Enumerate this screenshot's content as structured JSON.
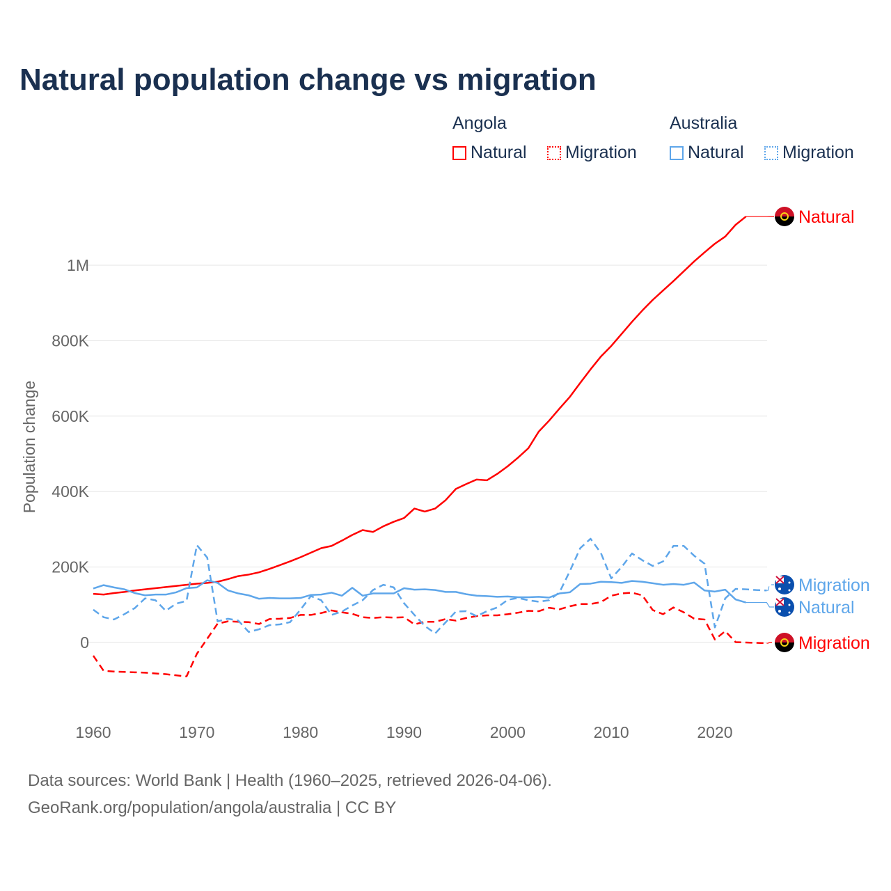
{
  "title": "Natural population change vs migration",
  "legend": {
    "groups": [
      {
        "country": "Angola",
        "items": [
          "Natural",
          "Migration"
        ]
      },
      {
        "country": "Australia",
        "items": [
          "Natural",
          "Migration"
        ]
      }
    ]
  },
  "colors": {
    "angola": "#ff0000",
    "australia": "#5ea6ea"
  },
  "footer": {
    "line1": "Data sources: World Bank | Health (1960–2025, retrieved 2026-04-06).",
    "line2": "GeoRank.org/population/angola/australia | CC BY"
  },
  "chart_data": {
    "type": "line",
    "title": "Natural population change vs migration",
    "xlabel": "",
    "ylabel": "Population change",
    "xlim": [
      1960,
      2025
    ],
    "ylim": [
      -150000,
      1150000
    ],
    "x_ticks": [
      "1960",
      "1970",
      "1980",
      "1990",
      "2000",
      "2010",
      "2020"
    ],
    "y_ticks": [
      {
        "v": 0,
        "label": "0"
      },
      {
        "v": 200000,
        "label": "200K"
      },
      {
        "v": 400000,
        "label": "400K"
      },
      {
        "v": 600000,
        "label": "600K"
      },
      {
        "v": 800000,
        "label": "800K"
      },
      {
        "v": 1000000,
        "label": "1M"
      }
    ],
    "grid": true,
    "series": [
      {
        "name": "Angola Natural",
        "country": "angola",
        "style": "solid",
        "end_label": "Natural",
        "start": 1960,
        "values": [
          129000,
          127000,
          131000,
          134000,
          138000,
          141000,
          144000,
          147000,
          150000,
          153000,
          156000,
          158000,
          161000,
          168000,
          176000,
          180000,
          186000,
          195000,
          205000,
          215000,
          226000,
          238000,
          250000,
          256000,
          270000,
          285000,
          298000,
          293000,
          308000,
          320000,
          330000,
          355000,
          347000,
          355000,
          377000,
          407000,
          420000,
          432000,
          430000,
          447000,
          467000,
          490000,
          515000,
          559000,
          588000,
          620000,
          651000,
          688000,
          724000,
          758000,
          786000,
          818000,
          850000,
          880000,
          908000,
          933000,
          958000,
          984000,
          1010000,
          1034000,
          1057000,
          1076000,
          1107000,
          1129000
        ]
      },
      {
        "name": "Angola Migration",
        "country": "angola",
        "style": "dashed",
        "end_label": "Migration",
        "start": 1960,
        "values": [
          -35000,
          -75000,
          -77000,
          -78000,
          -79000,
          -80000,
          -82000,
          -84000,
          -87000,
          -90000,
          -30000,
          10000,
          50000,
          56000,
          55000,
          54000,
          49000,
          62000,
          63000,
          65000,
          73000,
          73000,
          78000,
          85000,
          80000,
          76000,
          67000,
          65000,
          67000,
          66000,
          67000,
          48000,
          55000,
          55000,
          62000,
          58000,
          65000,
          70000,
          72000,
          72000,
          75000,
          79000,
          84000,
          83000,
          92000,
          88000,
          96000,
          102000,
          102000,
          107000,
          124000,
          130000,
          132000,
          125000,
          86000,
          75000,
          93000,
          80000,
          63000,
          61000,
          8000,
          30000,
          1000,
          0,
          -1000,
          -2000
        ]
      },
      {
        "name": "Australia Natural",
        "country": "australia",
        "style": "solid",
        "end_label": "Natural",
        "start": 1960,
        "values": [
          143000,
          152000,
          146000,
          141000,
          131000,
          125000,
          127000,
          127000,
          133000,
          144000,
          146000,
          165000,
          158000,
          138000,
          130000,
          125000,
          116000,
          118000,
          117000,
          117000,
          118000,
          126000,
          127000,
          132000,
          124000,
          145000,
          124000,
          130000,
          130000,
          130000,
          144000,
          140000,
          141000,
          139000,
          134000,
          134000,
          128000,
          124000,
          123000,
          121000,
          122000,
          120000,
          120000,
          121000,
          119000,
          130000,
          133000,
          155000,
          156000,
          161000,
          160000,
          158000,
          163000,
          161000,
          157000,
          153000,
          155000,
          153000,
          159000,
          138000,
          135000,
          140000,
          114000,
          106000
        ]
      },
      {
        "name": "Australia Migration",
        "country": "australia",
        "style": "dashed",
        "end_label": "Migration",
        "start": 1960,
        "values": [
          87000,
          67000,
          61000,
          75000,
          91000,
          117000,
          112000,
          84000,
          103000,
          110000,
          258000,
          225000,
          56000,
          63000,
          58000,
          28000,
          35000,
          46000,
          48000,
          54000,
          87000,
          123000,
          112000,
          73000,
          82000,
          98000,
          112000,
          139000,
          153000,
          146000,
          104000,
          73000,
          44000,
          24000,
          53000,
          82000,
          83000,
          70000,
          83000,
          93000,
          113000,
          118000,
          112000,
          108000,
          112000,
          133000,
          189000,
          250000,
          275000,
          237000,
          170000,
          200000,
          236000,
          218000,
          203000,
          215000,
          256000,
          256000,
          230000,
          209000,
          40000,
          117000,
          142000,
          141000,
          139000,
          138000
        ]
      }
    ]
  }
}
